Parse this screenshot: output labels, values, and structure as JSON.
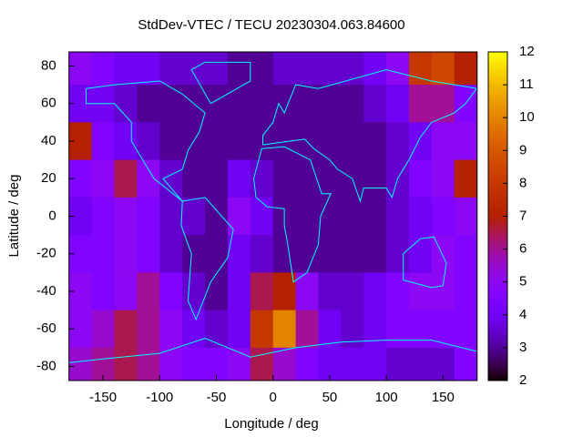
{
  "chart_data": {
    "type": "heatmap",
    "title": "StdDev-VTEC / TECU 20230304.063.84600",
    "x_label": "Longitude / deg",
    "y_label": "Latitude / deg",
    "xlim": [
      -180,
      180
    ],
    "ylim": [
      -87.5,
      87.5
    ],
    "xticks": [
      -150,
      -100,
      -50,
      0,
      50,
      100,
      150
    ],
    "yticks": [
      -80,
      -60,
      -40,
      -20,
      0,
      20,
      40,
      60,
      80
    ],
    "cblim": [
      2,
      12
    ],
    "cbticks": [
      2,
      3,
      4,
      5,
      6,
      7,
      8,
      9,
      10,
      11,
      12
    ],
    "palette": "rgbformulae 7,5,15",
    "coastline_color": "#00ffff",
    "xbins": [
      -180,
      -160,
      -140,
      -120,
      -100,
      -80,
      -60,
      -40,
      -20,
      0,
      20,
      40,
      60,
      80,
      100,
      120,
      140,
      160,
      180
    ],
    "ybins": [
      87.5,
      70,
      50,
      30,
      10,
      -10,
      -30,
      -50,
      -70,
      -87.5
    ],
    "z": [
      [
        5,
        4.5,
        4,
        4,
        3.5,
        3.5,
        3.5,
        3,
        3,
        3.5,
        3.5,
        3.5,
        3.5,
        4,
        5,
        8,
        8.5,
        7
      ],
      [
        4,
        4,
        3.5,
        3,
        3,
        3,
        3,
        3,
        3,
        3,
        3,
        3,
        3,
        3.5,
        4,
        6,
        6,
        4.5
      ],
      [
        7,
        4.5,
        4,
        3.5,
        3,
        3,
        3,
        3,
        3,
        3,
        3,
        3,
        3,
        3,
        3.5,
        4,
        5,
        5
      ],
      [
        4.5,
        5,
        6.5,
        5,
        3.5,
        3,
        3,
        4,
        3.5,
        3,
        3,
        3,
        3,
        3,
        3.5,
        4.5,
        5,
        7
      ],
      [
        4,
        4.5,
        5,
        4.5,
        3.5,
        3.5,
        3,
        5,
        4,
        3,
        3,
        3,
        3,
        3,
        3.5,
        4,
        4.5,
        5
      ],
      [
        4.5,
        4.5,
        5,
        4.5,
        3.5,
        3,
        3,
        4,
        3.5,
        3,
        3,
        3,
        3,
        3,
        3.5,
        4,
        5,
        4.5
      ],
      [
        5,
        4.5,
        5,
        6,
        4.5,
        3.5,
        3,
        4,
        6.5,
        7,
        5,
        3.5,
        3.5,
        4,
        4.5,
        5,
        5,
        4.5
      ],
      [
        5,
        5.5,
        6.5,
        6,
        5,
        4,
        3.5,
        4,
        8,
        10,
        6,
        4,
        3.5,
        4,
        4.5,
        4.5,
        4.5,
        4.5
      ],
      [
        5.5,
        6,
        6.5,
        6,
        5,
        4.5,
        4.5,
        5,
        6.5,
        5.5,
        4.5,
        4,
        4,
        4,
        3.5,
        3.5,
        3.5,
        4.5
      ]
    ]
  }
}
